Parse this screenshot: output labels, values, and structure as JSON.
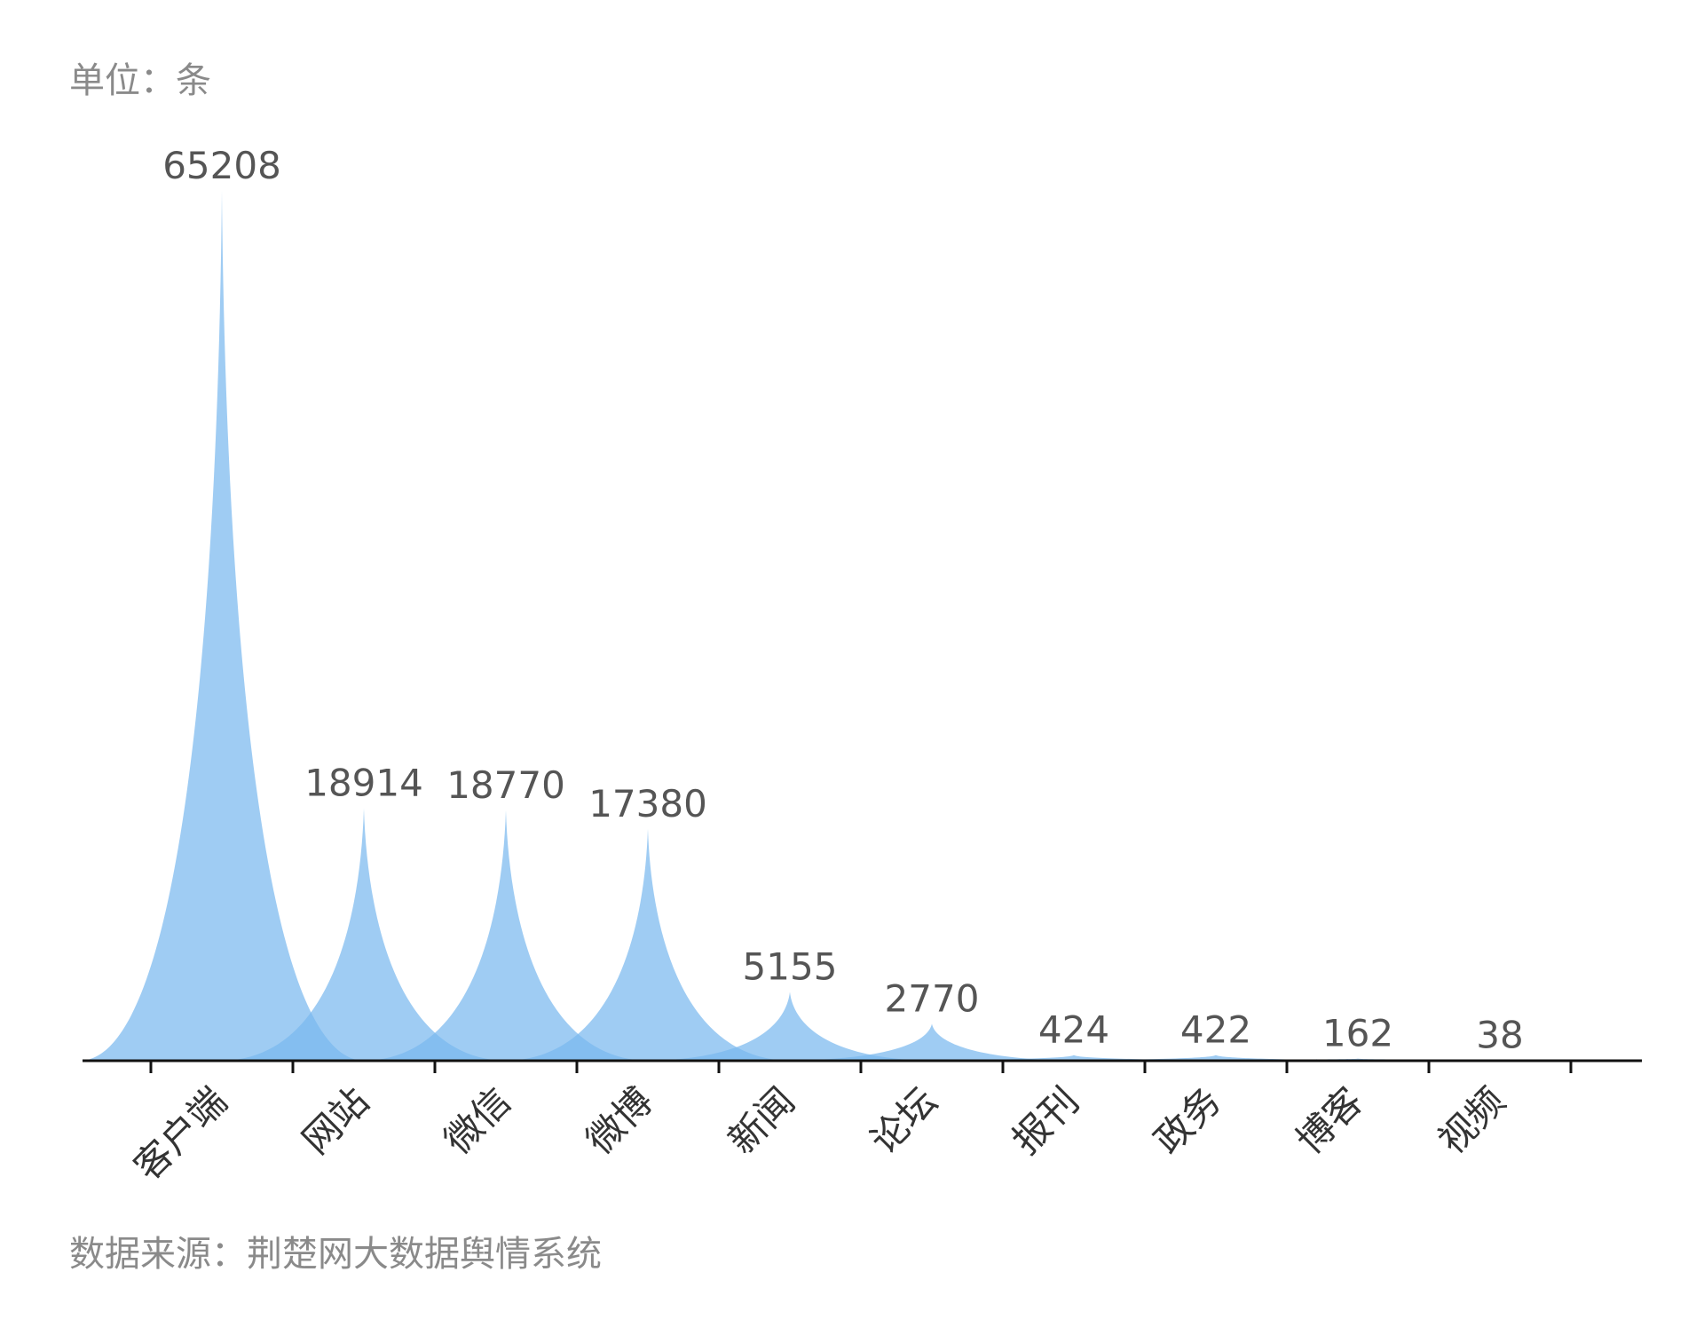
{
  "unit_label": "单位：条",
  "source_label": "数据来源：荆楚网大数据舆情系统",
  "chart_data": {
    "type": "pictorial-bar",
    "categories": [
      "客户端",
      "网站",
      "微信",
      "微博",
      "新闻",
      "论坛",
      "报刊",
      "政务",
      "博客",
      "视频"
    ],
    "values": [
      65208,
      18914,
      18770,
      17380,
      5155,
      2770,
      424,
      422,
      162,
      38
    ],
    "title": "",
    "xlabel": "",
    "ylabel": "",
    "ylim": [
      0,
      65208
    ],
    "grid": false,
    "legend": "none",
    "colors": {
      "fill": "#7ab9ef",
      "axis": "#111111",
      "value_text": "#555555",
      "category_text": "#333333"
    }
  }
}
